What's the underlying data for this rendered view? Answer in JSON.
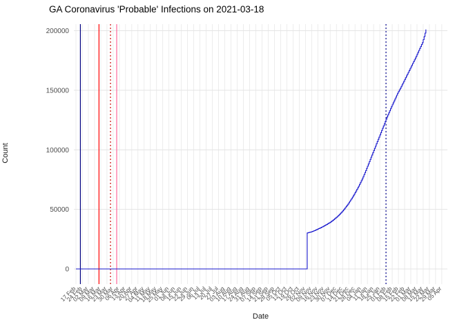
{
  "chart_data": {
    "type": "line",
    "title": "GA Coronavirus 'Probable' Infections on 2021-03-18",
    "xlabel": "Date",
    "ylabel": "Count",
    "ylim": [
      0,
      200000
    ],
    "yticks": [
      0,
      50000,
      100000,
      150000,
      200000
    ],
    "ytick_labels": [
      "0",
      "50000",
      "100000",
      "150000",
      "200000"
    ],
    "grid": true,
    "background_color": "#ffffff",
    "grid_color": "#e4e4e4",
    "axis_text_color": "#4d4d4d",
    "x_start_date": "2020-02-17",
    "xtick_interval_days": 7,
    "xtick_labels": [
      "17 Feb",
      "24 Feb",
      "02 Mar",
      "09 Mar",
      "16 Mar",
      "23 Mar",
      "30 Mar",
      "06 Apr",
      "13 Apr",
      "20 Apr",
      "27 Apr",
      "04 May",
      "11 May",
      "18 May",
      "25 May",
      "01 Jun",
      "08 Jun",
      "15 Jun",
      "22 Jun",
      "29 Jun",
      "06 Jul",
      "13 Jul",
      "20 Jul",
      "27 Jul",
      "03 Aug",
      "10 Aug",
      "17 Aug",
      "24 Aug",
      "31 Aug",
      "07 Sep",
      "14 Sep",
      "21 Sep",
      "28 Sep",
      "05 Oct",
      "12 Oct",
      "19 Oct",
      "26 Oct",
      "02 Nov",
      "09 Nov",
      "16 Nov",
      "23 Nov",
      "30 Nov",
      "07 Dec",
      "14 Dec",
      "21 Dec",
      "28 Dec",
      "04 Jan",
      "11 Jan",
      "18 Jan",
      "25 Jan",
      "01 Feb",
      "08 Feb",
      "15 Feb",
      "22 Feb",
      "01 Mar",
      "08 Mar",
      "15 Mar",
      "22 Mar",
      "29 Mar",
      "05 Apr"
    ],
    "series": [
      {
        "name": "probable-infections",
        "color": "#1414cc",
        "points": [
          [
            "2020-02-17",
            0
          ],
          [
            "2020-11-03",
            0
          ],
          [
            "2020-11-04",
            30200
          ],
          [
            "2020-11-07",
            30800
          ],
          [
            "2020-11-10",
            31500
          ],
          [
            "2020-11-14",
            32800
          ],
          [
            "2020-11-18",
            34200
          ],
          [
            "2020-11-22",
            35700
          ],
          [
            "2020-11-26",
            37400
          ],
          [
            "2020-11-30",
            39200
          ],
          [
            "2020-12-04",
            41500
          ],
          [
            "2020-12-08",
            44000
          ],
          [
            "2020-12-12",
            47000
          ],
          [
            "2020-12-16",
            50500
          ],
          [
            "2020-12-20",
            54500
          ],
          [
            "2020-12-24",
            59000
          ],
          [
            "2020-12-28",
            64000
          ],
          [
            "2021-01-01",
            69500
          ],
          [
            "2021-01-05",
            75500
          ],
          [
            "2021-01-09",
            82500
          ],
          [
            "2021-01-13",
            90000
          ],
          [
            "2021-01-17",
            97500
          ],
          [
            "2021-01-21",
            105000
          ],
          [
            "2021-01-25",
            112500
          ],
          [
            "2021-01-29",
            120000
          ],
          [
            "2021-02-02",
            127500
          ],
          [
            "2021-02-06",
            134500
          ],
          [
            "2021-02-10",
            141000
          ],
          [
            "2021-02-14",
            147500
          ],
          [
            "2021-02-18",
            153000
          ],
          [
            "2021-02-22",
            159000
          ],
          [
            "2021-02-26",
            165000
          ],
          [
            "2021-03-02",
            171000
          ],
          [
            "2021-03-06",
            177000
          ],
          [
            "2021-03-10",
            183500
          ],
          [
            "2021-03-14",
            190000
          ],
          [
            "2021-03-16",
            195000
          ],
          [
            "2021-03-18",
            201000
          ]
        ]
      }
    ],
    "vlines": [
      {
        "date": "2020-02-22",
        "color": "#000080",
        "style": "solid"
      },
      {
        "date": "2020-03-14",
        "color": "#ff0000",
        "style": "solid"
      },
      {
        "date": "2020-03-27",
        "color": "#cc0000",
        "style": "dotted"
      },
      {
        "date": "2020-04-03",
        "color": "#ff6699",
        "style": "solid"
      },
      {
        "date": "2021-02-01",
        "color": "#00008b",
        "style": "dotted"
      }
    ],
    "legend_position": "none"
  }
}
